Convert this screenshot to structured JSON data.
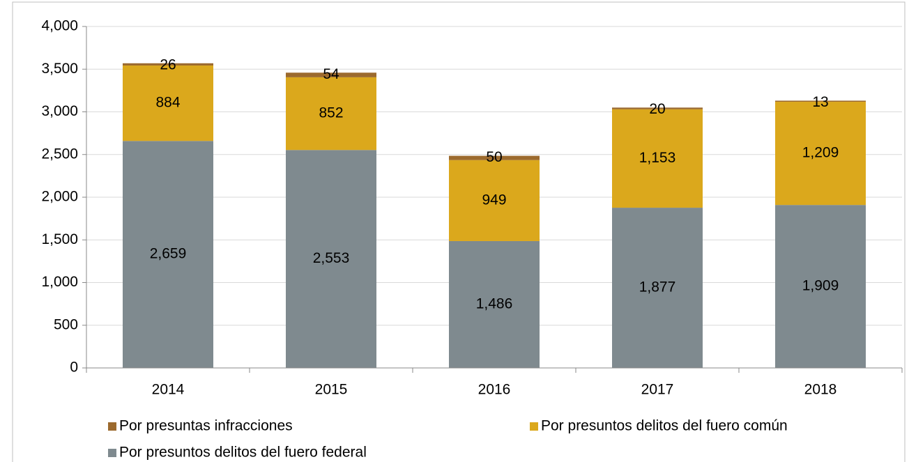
{
  "chart_data": {
    "type": "stacked_bar",
    "categories": [
      "2014",
      "2015",
      "2016",
      "2017",
      "2018"
    ],
    "series": [
      {
        "name": "Por presuntas infracciones",
        "color": "#9c6a2e",
        "values": [
          26,
          54,
          50,
          20,
          13
        ],
        "value_labels": [
          "26",
          "54",
          "50",
          "20",
          "13"
        ]
      },
      {
        "name": "Por presuntos delitos del fuero común",
        "color": "#dba81c",
        "values": [
          884,
          852,
          949,
          1153,
          1209
        ],
        "value_labels": [
          "884",
          "852",
          "949",
          "1,153",
          "1,209"
        ]
      },
      {
        "name": "Por presuntos delitos del fuero federal",
        "color": "#7f8a8f",
        "values": [
          2659,
          2553,
          1486,
          1877,
          1909
        ],
        "value_labels": [
          "2,659",
          "2,553",
          "1,486",
          "1,877",
          "1,909"
        ]
      }
    ],
    "ylim": [
      0,
      4000
    ],
    "yticks": [
      0,
      500,
      {
        "value": 1000,
        "label": "1,000"
      },
      {
        "value": 1500,
        "label": "1,500"
      },
      {
        "value": 2000,
        "label": "2,000"
      },
      {
        "value": 2500,
        "label": "2,500"
      },
      {
        "value": 3000,
        "label": "3,000"
      },
      {
        "value": 3500,
        "label": "3,500"
      },
      {
        "value": 4000,
        "label": "4,000"
      }
    ],
    "grid": true
  }
}
